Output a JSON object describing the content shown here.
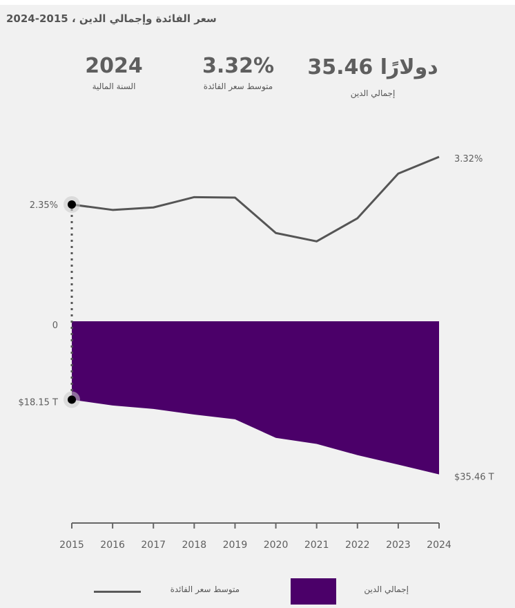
{
  "header": {
    "title": "سعر الفائدة وإجمالي الدين ، 2015-2024"
  },
  "kpis": {
    "fiscal_year": {
      "value": "2024",
      "label": "السنة المالية"
    },
    "avg_rate": {
      "value": "3.32%",
      "label": "متوسط سعر الفائدة"
    },
    "total_debt": {
      "value": "دولارًا 35.46",
      "label": "إجمالي الدين"
    }
  },
  "legend": {
    "line_label": "متوسط سعر الفائدة",
    "area_label": "إجمالي الدين"
  },
  "colors": {
    "debt_fill": "#4b0069",
    "rate_line": "#555555",
    "background": "#f1f1f1"
  },
  "chart_data": {
    "type": "line",
    "title": "سعر الفائدة وإجمالي الدين ، 2015-2024",
    "categories": [
      "2015",
      "2016",
      "2017",
      "2018",
      "2019",
      "2020",
      "2021",
      "2022",
      "2023",
      "2024"
    ],
    "series": [
      {
        "name": "متوسط سعر الفائدة",
        "type": "line",
        "unit": "%",
        "values": [
          2.35,
          2.24,
          2.29,
          2.5,
          2.49,
          1.77,
          1.6,
          2.07,
          2.98,
          3.32
        ],
        "start_label": "2.35%",
        "end_label": "3.32%"
      },
      {
        "name": "إجمالي الدين",
        "type": "area",
        "unit": "$ T",
        "values": [
          18.15,
          19.5,
          20.3,
          21.6,
          22.7,
          27.0,
          28.4,
          31.0,
          33.2,
          35.46
        ],
        "start_label": "$18.15 T",
        "end_label": "$35.46 T",
        "direction": "downward"
      }
    ],
    "zero_label": "0",
    "xlabel": "",
    "ylabel": "",
    "grid": false,
    "legend_position": "bottom"
  }
}
